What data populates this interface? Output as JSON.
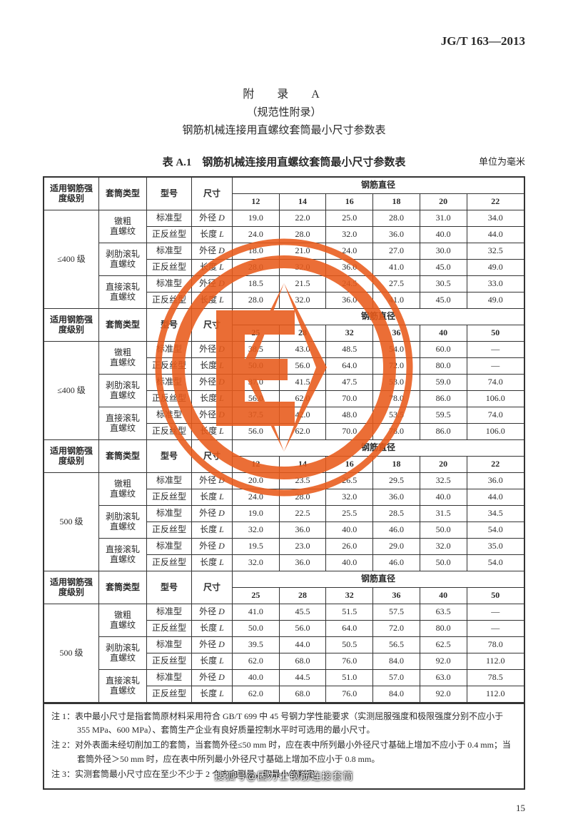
{
  "document_code": "JG/T 163—2013",
  "appendix_label": "附　录　A",
  "appendix_type": "（规范性附录）",
  "appendix_title": "钢筋机械连接用直螺纹套筒最小尺寸参数表",
  "table_label": "表 A.1　钢筋机械连接用直螺纹套筒最小尺寸参数表",
  "unit_note": "单位为毫米",
  "page_number": "15",
  "footer_credit": "搜狐号@固力士钢筋连接套筒",
  "columns": {
    "grade": "适用钢筋强度级别",
    "sleeve_type": "套筒类型",
    "model": "型号",
    "dimension": "尺寸",
    "rebar_diameter": "钢筋直径"
  },
  "models": {
    "std": "标准型",
    "rev": "正反丝型"
  },
  "dims": {
    "d": "外径 D",
    "l": "长度 L"
  },
  "sleeve_types": {
    "a": "镦粗直螺纹",
    "b": "剥肋滚轧直螺纹",
    "c": "直接滚轧直螺纹"
  },
  "grades": {
    "g400": "≤400 级",
    "g500": "500 级"
  },
  "diam_set_small": [
    "12",
    "14",
    "16",
    "18",
    "20",
    "22"
  ],
  "diam_set_large": [
    "25",
    "28",
    "32",
    "36",
    "40",
    "50"
  ],
  "sections": [
    {
      "grade": "g400",
      "diam": "small",
      "rows": [
        {
          "t": "a",
          "m": "std",
          "d": "d",
          "v": [
            "19.0",
            "22.0",
            "25.0",
            "28.0",
            "31.0",
            "34.0"
          ]
        },
        {
          "t": "a",
          "m": "rev",
          "d": "l",
          "v": [
            "24.0",
            "28.0",
            "32.0",
            "36.0",
            "40.0",
            "44.0"
          ]
        },
        {
          "t": "b",
          "m": "std",
          "d": "d",
          "v": [
            "18.0",
            "21.0",
            "24.0",
            "27.0",
            "30.0",
            "32.5"
          ]
        },
        {
          "t": "b",
          "m": "rev",
          "d": "l",
          "v": [
            "28.0",
            "32.0",
            "36.0",
            "41.0",
            "45.0",
            "49.0"
          ]
        },
        {
          "t": "c",
          "m": "std",
          "d": "d",
          "v": [
            "18.5",
            "21.5",
            "24.5",
            "27.5",
            "30.5",
            "33.0"
          ]
        },
        {
          "t": "c",
          "m": "rev",
          "d": "l",
          "v": [
            "28.0",
            "32.0",
            "36.0",
            "41.0",
            "45.0",
            "49.0"
          ]
        }
      ]
    },
    {
      "grade": "g400",
      "diam": "large",
      "rows": [
        {
          "t": "a",
          "m": "std",
          "d": "d",
          "v": [
            "38.5",
            "43.0",
            "48.5",
            "54.0",
            "60.0",
            "—"
          ]
        },
        {
          "t": "a",
          "m": "rev",
          "d": "l",
          "v": [
            "50.0",
            "56.0",
            "64.0",
            "72.0",
            "80.0",
            "—"
          ]
        },
        {
          "t": "b",
          "m": "std",
          "d": "d",
          "v": [
            "37.0",
            "41.5",
            "47.5",
            "53.0",
            "59.0",
            "74.0"
          ]
        },
        {
          "t": "b",
          "m": "rev",
          "d": "l",
          "v": [
            "56.0",
            "62.0",
            "70.0",
            "78.0",
            "86.0",
            "106.0"
          ]
        },
        {
          "t": "c",
          "m": "std",
          "d": "d",
          "v": [
            "37.5",
            "42.0",
            "48.0",
            "53.5",
            "59.5",
            "74.0"
          ]
        },
        {
          "t": "c",
          "m": "rev",
          "d": "l",
          "v": [
            "56.0",
            "62.0",
            "70.0",
            "78.0",
            "86.0",
            "106.0"
          ]
        }
      ]
    },
    {
      "grade": "g500",
      "diam": "small",
      "rows": [
        {
          "t": "a",
          "m": "std",
          "d": "d",
          "v": [
            "20.0",
            "23.5",
            "26.5",
            "29.5",
            "32.5",
            "36.0"
          ]
        },
        {
          "t": "a",
          "m": "rev",
          "d": "l",
          "v": [
            "24.0",
            "28.0",
            "32.0",
            "36.0",
            "40.0",
            "44.0"
          ]
        },
        {
          "t": "b",
          "m": "std",
          "d": "d",
          "v": [
            "19.0",
            "22.5",
            "25.5",
            "28.5",
            "31.5",
            "34.5"
          ]
        },
        {
          "t": "b",
          "m": "rev",
          "d": "l",
          "v": [
            "32.0",
            "36.0",
            "40.0",
            "46.0",
            "50.0",
            "54.0"
          ]
        },
        {
          "t": "c",
          "m": "std",
          "d": "d",
          "v": [
            "19.5",
            "23.0",
            "26.0",
            "29.0",
            "32.0",
            "35.0"
          ]
        },
        {
          "t": "c",
          "m": "rev",
          "d": "l",
          "v": [
            "32.0",
            "36.0",
            "40.0",
            "46.0",
            "50.0",
            "54.0"
          ]
        }
      ]
    },
    {
      "grade": "g500",
      "diam": "large",
      "rows": [
        {
          "t": "a",
          "m": "std",
          "d": "d",
          "v": [
            "41.0",
            "45.5",
            "51.5",
            "57.5",
            "63.5",
            "—"
          ]
        },
        {
          "t": "a",
          "m": "rev",
          "d": "l",
          "v": [
            "50.0",
            "56.0",
            "64.0",
            "72.0",
            "80.0",
            "—"
          ]
        },
        {
          "t": "b",
          "m": "std",
          "d": "d",
          "v": [
            "39.5",
            "44.0",
            "50.5",
            "56.5",
            "62.5",
            "78.0"
          ]
        },
        {
          "t": "b",
          "m": "rev",
          "d": "l",
          "v": [
            "62.0",
            "68.0",
            "76.0",
            "84.0",
            "92.0",
            "112.0"
          ]
        },
        {
          "t": "c",
          "m": "std",
          "d": "d",
          "v": [
            "40.0",
            "44.5",
            "51.0",
            "57.0",
            "63.0",
            "78.5"
          ]
        },
        {
          "t": "c",
          "m": "rev",
          "d": "l",
          "v": [
            "62.0",
            "68.0",
            "76.0",
            "84.0",
            "92.0",
            "112.0"
          ]
        }
      ]
    }
  ],
  "notes": [
    "注 1：表中最小尺寸是指套筒原材料采用符合 GB/T 699 中 45 号钢力学性能要求（实测屈服强度和极限强度分别不应小于 355 MPa、600 MPa）、套筒生产企业有良好质量控制水平时可选用的最小尺寸。",
    "注 2：对外表面未经切削加工的套筒，当套筒外径≤50 mm 时，应在表中所列最小外径尺寸基础上增加不应小于 0.4 mm；当套筒外径＞50 mm 时，应在表中所列最小外径尺寸基础上增加不应小于 0.8 mm。",
    "注 3：实测套筒最小尺寸应在至少不少于 2 个方向测量，取最小值判定。"
  ],
  "watermark": {
    "outer_color": "#e85a1a",
    "size": 380
  }
}
